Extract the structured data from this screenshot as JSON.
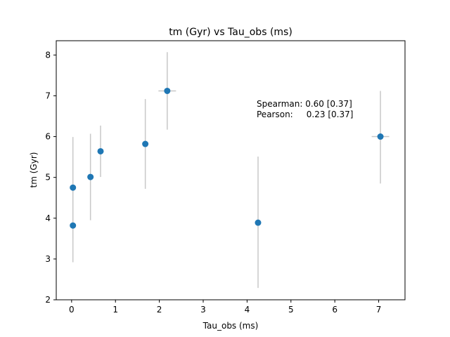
{
  "chart_data": {
    "type": "scatter",
    "title": "tm (Gyr) vs Tau_obs (ms)",
    "xlabel": "Tau_obs (ms)",
    "ylabel": "tm (Gyr)",
    "xlim": [
      -0.35,
      7.6
    ],
    "ylim": [
      2.0,
      8.35
    ],
    "xticks": [
      0,
      1,
      2,
      3,
      4,
      5,
      6,
      7
    ],
    "yticks": [
      2,
      3,
      4,
      5,
      6,
      7,
      8
    ],
    "grid": false,
    "marker_color": "#1f77b4",
    "errorbar_color": "#c8c8c8",
    "points": [
      {
        "x": 0.03,
        "y": 4.75,
        "yerr": [
          1.24,
          1.24
        ],
        "xerr": 0
      },
      {
        "x": 0.03,
        "y": 3.82,
        "yerr": [
          0.9,
          0.9
        ],
        "xerr": 0
      },
      {
        "x": 0.43,
        "y": 5.01,
        "yerr": [
          1.06,
          1.06
        ],
        "xerr": 0
      },
      {
        "x": 0.66,
        "y": 5.64,
        "yerr": [
          0.63,
          0.63
        ],
        "xerr": 0
      },
      {
        "x": 1.68,
        "y": 5.82,
        "yerr": [
          1.1,
          1.1
        ],
        "xerr": 0
      },
      {
        "x": 2.18,
        "y": 7.12,
        "yerr": [
          0.95,
          0.95
        ],
        "xerr": 0.2
      },
      {
        "x": 4.25,
        "y": 3.89,
        "yerr": [
          1.6,
          1.62
        ],
        "xerr": 0
      },
      {
        "x": 7.04,
        "y": 6.0,
        "yerr": [
          1.15,
          1.12
        ],
        "xerr": 0.2
      }
    ],
    "annotations": [
      {
        "text": "Spearman: 0.60 [0.37]"
      },
      {
        "text": "Pearson:     0.23 [0.37]"
      }
    ]
  }
}
